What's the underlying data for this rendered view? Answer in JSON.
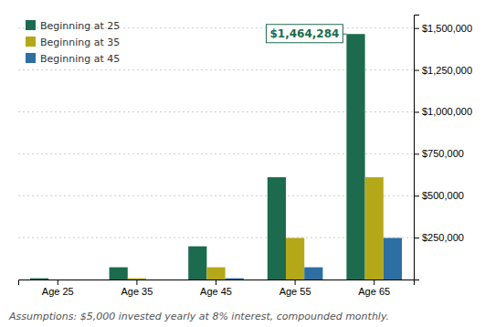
{
  "chart_data": {
    "type": "bar",
    "categories": [
      "Age 25",
      "Age 35",
      "Age 45",
      "Age 55",
      "Age 65"
    ],
    "series": [
      {
        "name": "Beginning at 25",
        "color": "#1d6b4e",
        "values": [
          7300,
          73000,
          198000,
          610000,
          1464284
        ]
      },
      {
        "name": "Beginning at 35",
        "color": "#b5a818",
        "values": [
          0,
          7300,
          73000,
          248000,
          610000
        ]
      },
      {
        "name": "Beginning at 45",
        "color": "#2e6fa3",
        "values": [
          0,
          0,
          7300,
          73000,
          248000
        ]
      }
    ],
    "ylim": [
      0,
      1580000
    ],
    "yticks": [
      {
        "value": 250000,
        "label": "$250,000"
      },
      {
        "value": 500000,
        "label": "$500,000"
      },
      {
        "value": 750000,
        "label": "$750,000"
      },
      {
        "value": 1000000,
        "label": "$1,000,000"
      },
      {
        "value": 1250000,
        "label": "$1,250,000"
      },
      {
        "value": 1500000,
        "label": "$1,500,000"
      }
    ],
    "grid": true,
    "legend": "upper left",
    "annotations": [
      {
        "text": "$1,464,284",
        "x": "Age 65",
        "y": 1464284,
        "color": "#1d6b4e"
      }
    ],
    "caption": "Assumptions: $5,000 invested yearly at 8% interest, compounded monthly."
  }
}
